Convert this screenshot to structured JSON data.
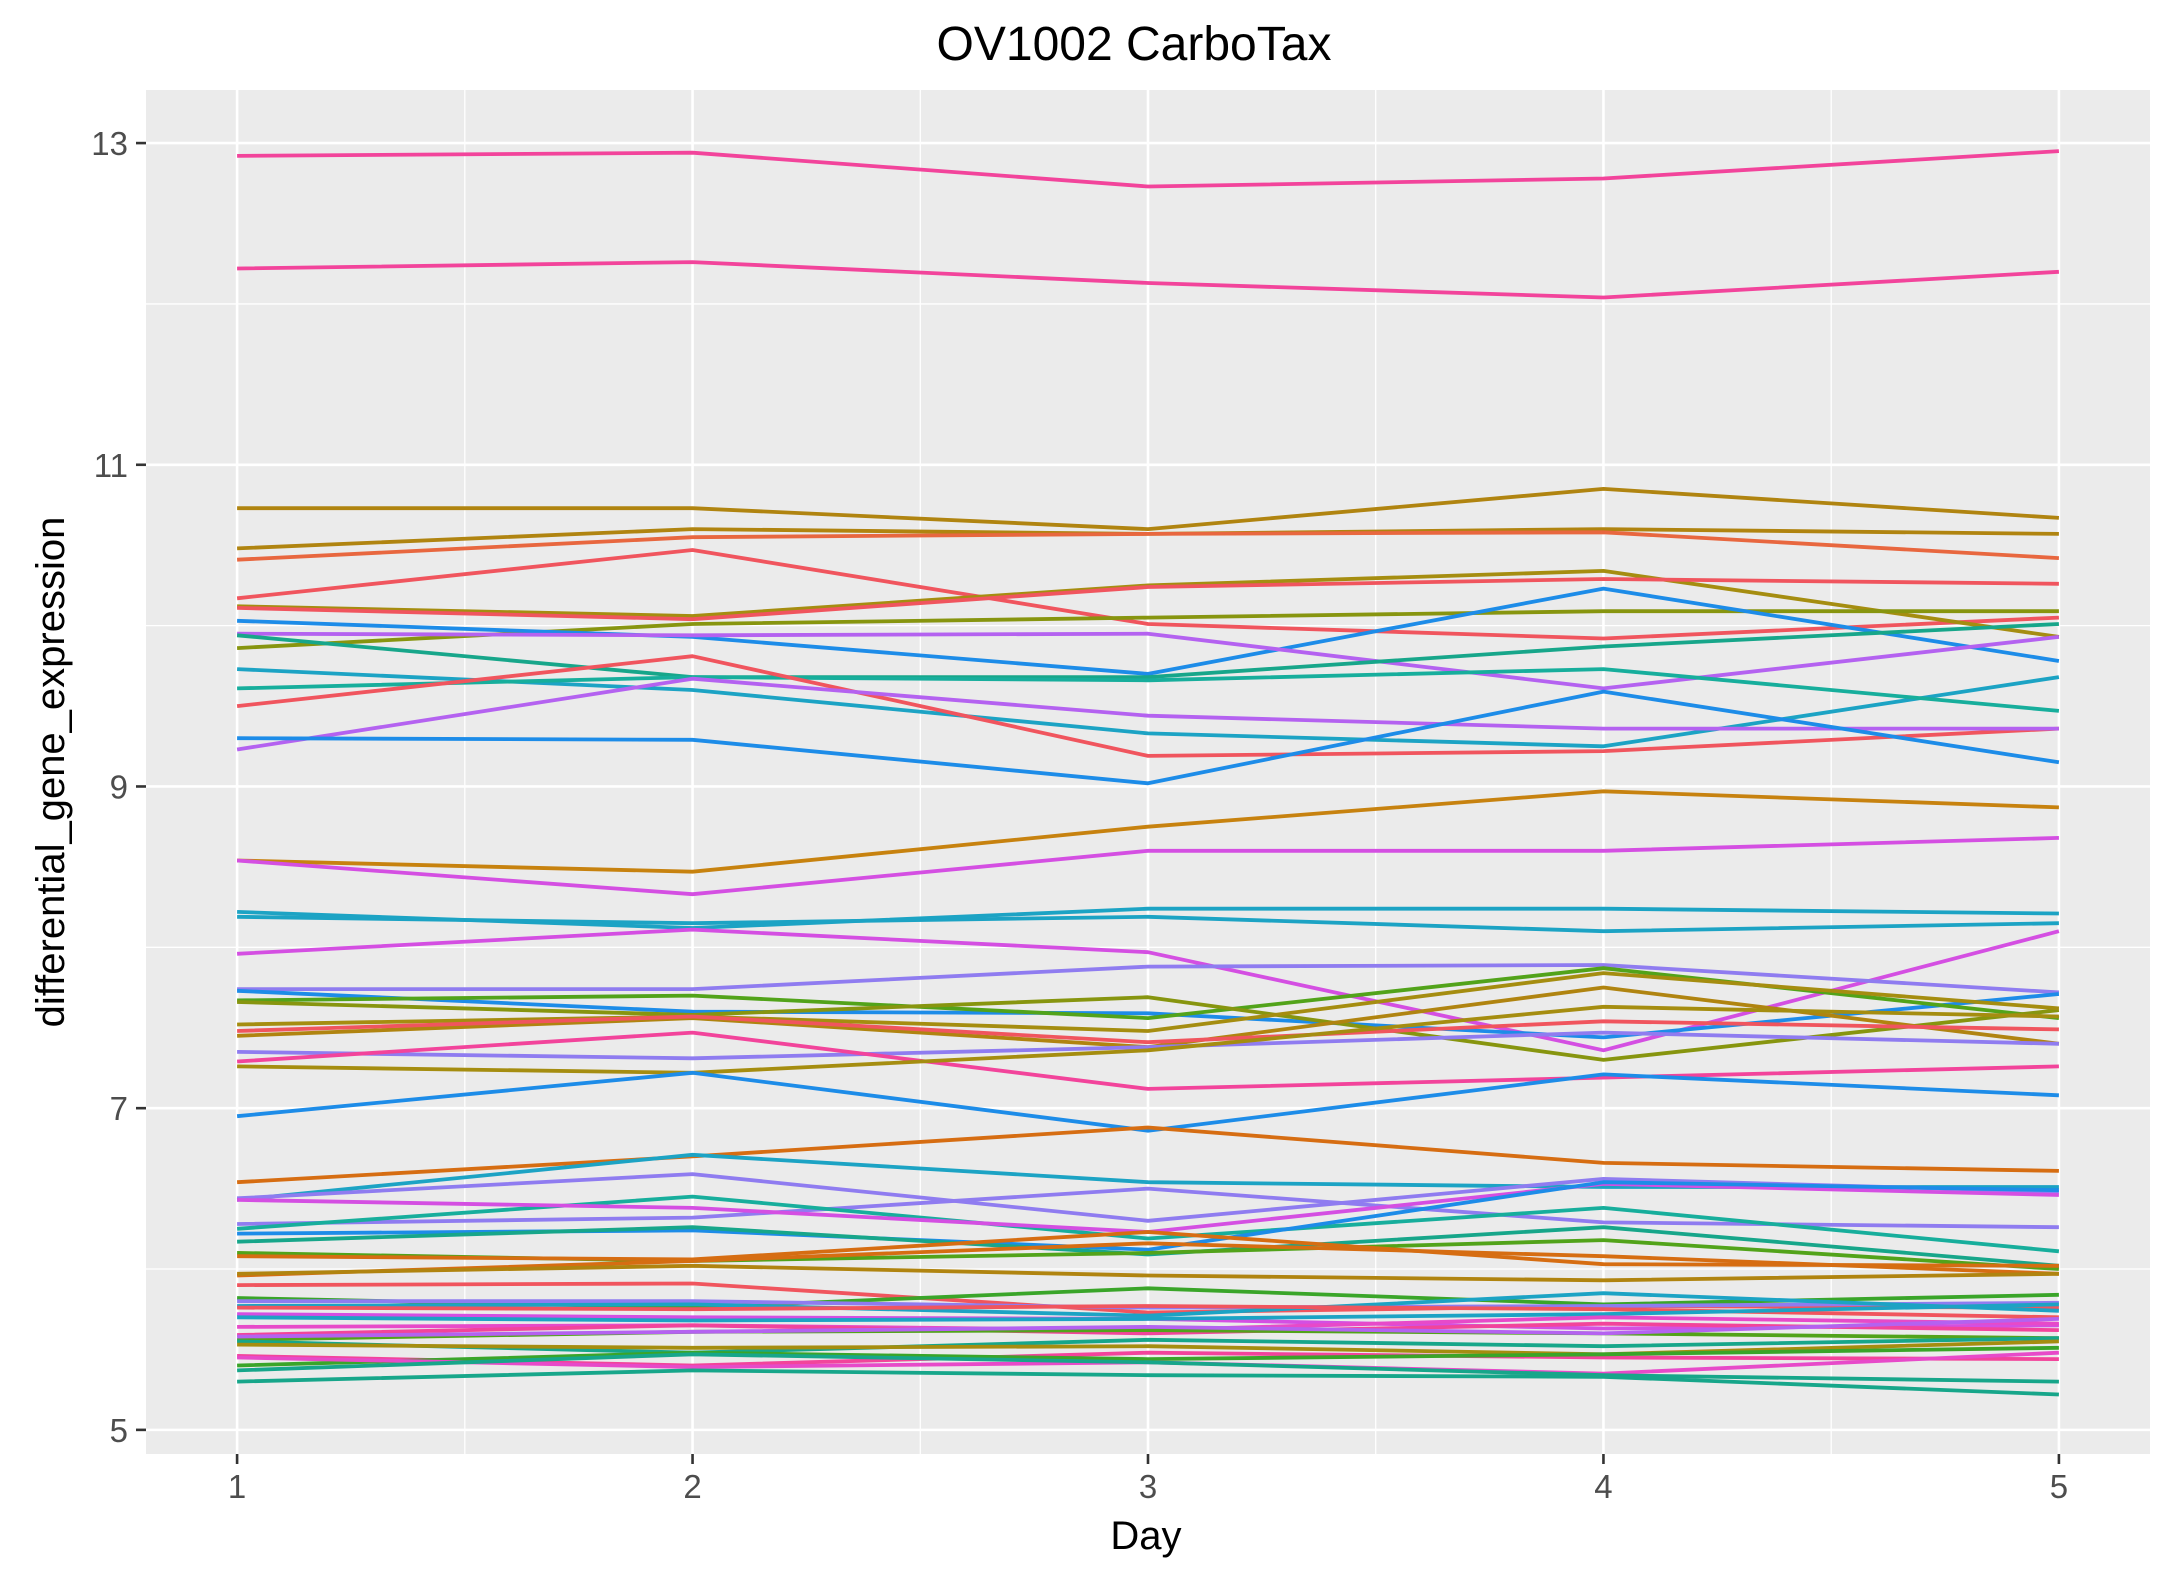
{
  "chart_data": {
    "type": "line",
    "title": "OV1002 CarboTax",
    "xlabel": "Day",
    "ylabel": "differential_gene_expression",
    "x": [
      1,
      2,
      3,
      4,
      5
    ],
    "xlim": [
      0.8,
      5.2
    ],
    "ylim": [
      4.85,
      13.33
    ],
    "x_ticks": [
      1,
      2,
      3,
      4,
      5
    ],
    "y_ticks": [
      5,
      7,
      9,
      11,
      13
    ],
    "grid": true,
    "legend": "none",
    "series": [
      {
        "color": "#F2449B",
        "values": [
          12.92,
          12.94,
          12.73,
          12.78,
          12.95
        ]
      },
      {
        "color": "#F2449B",
        "values": [
          12.22,
          12.26,
          12.13,
          12.04,
          12.2
        ]
      },
      {
        "color": "#B08410",
        "values": [
          10.73,
          10.73,
          10.6,
          10.85,
          10.67
        ]
      },
      {
        "color": "#B08410",
        "values": [
          10.48,
          10.6,
          10.57,
          10.6,
          10.57
        ]
      },
      {
        "color": "#E8673F",
        "values": [
          10.41,
          10.55,
          10.57,
          10.58,
          10.42
        ]
      },
      {
        "color": "#F0555E",
        "values": [
          10.17,
          10.47,
          10.01,
          9.92,
          10.05
        ]
      },
      {
        "color": "#A58D10",
        "values": [
          10.12,
          10.06,
          10.25,
          10.34,
          9.93
        ]
      },
      {
        "color": "#F0555E",
        "values": [
          10.11,
          10.04,
          10.24,
          10.29,
          10.26
        ]
      },
      {
        "color": "#87950F",
        "values": [
          9.86,
          10.01,
          10.05,
          10.09,
          10.09
        ]
      },
      {
        "color": "#1D8CE8",
        "values": [
          10.03,
          9.93,
          9.7,
          10.23,
          9.78
        ]
      },
      {
        "color": "#B462F0",
        "values": [
          9.95,
          9.94,
          9.95,
          9.61,
          9.93
        ]
      },
      {
        "color": "#17A68A",
        "values": [
          9.94,
          9.68,
          9.68,
          9.87,
          10.01
        ]
      },
      {
        "color": "#1CA3C4",
        "values": [
          9.73,
          9.6,
          9.33,
          9.25,
          9.68
        ]
      },
      {
        "color": "#17AE9C",
        "values": [
          9.61,
          9.68,
          9.66,
          9.73,
          9.47
        ]
      },
      {
        "color": "#F0555E",
        "values": [
          9.5,
          9.81,
          9.19,
          9.22,
          9.36
        ]
      },
      {
        "color": "#B462F0",
        "values": [
          9.23,
          9.67,
          9.44,
          9.36,
          9.36
        ]
      },
      {
        "color": "#1D8CE8",
        "values": [
          9.3,
          9.29,
          9.02,
          9.59,
          9.15
        ]
      },
      {
        "color": "#C7820F",
        "values": [
          8.54,
          8.47,
          8.75,
          8.97,
          8.87
        ]
      },
      {
        "color": "#D44FE2",
        "values": [
          8.54,
          8.33,
          8.6,
          8.6,
          8.68
        ]
      },
      {
        "color": "#1CA3C4",
        "values": [
          8.22,
          8.12,
          8.24,
          8.24,
          8.21
        ]
      },
      {
        "color": "#1CA3C4",
        "values": [
          8.19,
          8.15,
          8.19,
          8.1,
          8.15
        ]
      },
      {
        "color": "#D44FE2",
        "values": [
          7.96,
          8.11,
          7.97,
          7.36,
          8.1
        ]
      },
      {
        "color": "#8F7CF0",
        "values": [
          7.74,
          7.74,
          7.88,
          7.89,
          7.72
        ]
      },
      {
        "color": "#1D8CE8",
        "values": [
          7.73,
          7.6,
          7.59,
          7.44,
          7.71
        ]
      },
      {
        "color": "#52A31A",
        "values": [
          7.67,
          7.7,
          7.56,
          7.87,
          7.56
        ]
      },
      {
        "color": "#87950F",
        "values": [
          7.66,
          7.58,
          7.69,
          7.3,
          7.61
        ]
      },
      {
        "color": "#A58D10",
        "values": [
          7.52,
          7.57,
          7.48,
          7.84,
          7.62
        ]
      },
      {
        "color": "#B08410",
        "values": [
          7.45,
          7.56,
          7.38,
          7.75,
          7.4
        ]
      },
      {
        "color": "#F0555E",
        "values": [
          7.48,
          7.57,
          7.41,
          7.54,
          7.49
        ]
      },
      {
        "color": "#8F7CF0",
        "values": [
          7.35,
          7.31,
          7.38,
          7.47,
          7.4
        ]
      },
      {
        "color": "#F2449B",
        "values": [
          7.29,
          7.47,
          7.12,
          7.19,
          7.26
        ]
      },
      {
        "color": "#A58D10",
        "values": [
          7.26,
          7.22,
          7.36,
          7.63,
          7.57
        ]
      },
      {
        "color": "#1D8CE8",
        "values": [
          6.95,
          7.22,
          6.86,
          7.21,
          7.08
        ]
      },
      {
        "color": "#D66D12",
        "values": [
          6.54,
          6.7,
          6.88,
          6.66,
          6.61
        ]
      },
      {
        "color": "#1CA3C4",
        "values": [
          6.43,
          6.71,
          6.54,
          6.51,
          6.51
        ]
      },
      {
        "color": "#8F7CF0",
        "values": [
          6.44,
          6.59,
          6.3,
          6.56,
          6.48
        ]
      },
      {
        "color": "#8F7CF0",
        "values": [
          6.28,
          6.32,
          6.5,
          6.29,
          6.26
        ]
      },
      {
        "color": "#17AE9C",
        "values": [
          6.25,
          6.45,
          6.19,
          6.38,
          6.11
        ]
      },
      {
        "color": "#D44FE2",
        "values": [
          6.43,
          6.38,
          6.23,
          6.53,
          6.46
        ]
      },
      {
        "color": "#1D8CE8",
        "values": [
          6.22,
          6.24,
          6.12,
          6.54,
          6.49
        ]
      },
      {
        "color": "#17A68A",
        "values": [
          6.17,
          6.26,
          6.09,
          6.26,
          6.02
        ]
      },
      {
        "color": "#52A31A",
        "values": [
          6.1,
          6.05,
          6.1,
          6.18,
          6.0
        ]
      },
      {
        "color": "#D66D12",
        "values": [
          6.08,
          6.06,
          6.23,
          6.03,
          6.02
        ]
      },
      {
        "color": "#D66D12",
        "values": [
          5.96,
          6.05,
          6.16,
          6.08,
          5.97
        ]
      },
      {
        "color": "#B08410",
        "values": [
          5.97,
          6.02,
          5.96,
          5.93,
          5.97
        ]
      },
      {
        "color": "#F0555E",
        "values": [
          5.9,
          5.91,
          5.73,
          5.77,
          5.76
        ]
      },
      {
        "color": "#3AA529",
        "values": [
          5.82,
          5.76,
          5.88,
          5.78,
          5.84
        ]
      },
      {
        "color": "#8F7CF0",
        "values": [
          5.8,
          5.8,
          5.76,
          5.77,
          5.79
        ]
      },
      {
        "color": "#1CA3C4",
        "values": [
          5.77,
          5.78,
          5.71,
          5.85,
          5.74
        ]
      },
      {
        "color": "#F0555E",
        "values": [
          5.76,
          5.75,
          5.77,
          5.75,
          5.7
        ]
      },
      {
        "color": "#D44FE2",
        "values": [
          5.72,
          5.7,
          5.69,
          5.63,
          5.65
        ]
      },
      {
        "color": "#1CA3C4",
        "values": [
          5.7,
          5.68,
          5.69,
          5.72,
          5.78
        ]
      },
      {
        "color": "#E74AC9",
        "values": [
          5.64,
          5.65,
          5.62,
          5.7,
          5.66
        ]
      },
      {
        "color": "#F2449B",
        "values": [
          5.59,
          5.65,
          5.6,
          5.66,
          5.62
        ]
      },
      {
        "color": "#52A31A",
        "values": [
          5.56,
          5.61,
          5.62,
          5.6,
          5.57
        ]
      },
      {
        "color": "#B462F0",
        "values": [
          5.58,
          5.61,
          5.64,
          5.6,
          5.69
        ]
      },
      {
        "color": "#17A68A",
        "values": [
          5.55,
          5.48,
          5.56,
          5.52,
          5.57
        ]
      },
      {
        "color": "#A58D10",
        "values": [
          5.53,
          5.51,
          5.52,
          5.47,
          5.55
        ]
      },
      {
        "color": "#F2449B",
        "values": [
          5.46,
          5.4,
          5.48,
          5.45,
          5.44
        ]
      },
      {
        "color": "#3AA529",
        "values": [
          5.4,
          5.48,
          5.44,
          5.47,
          5.51
        ]
      },
      {
        "color": "#E74AC9",
        "values": [
          5.45,
          5.39,
          5.42,
          5.35,
          5.48
        ]
      },
      {
        "color": "#17A68A",
        "values": [
          5.37,
          5.47,
          5.42,
          5.34,
          5.3
        ]
      },
      {
        "color": "#17A68A",
        "values": [
          5.3,
          5.37,
          5.34,
          5.33,
          5.22
        ]
      }
    ]
  }
}
